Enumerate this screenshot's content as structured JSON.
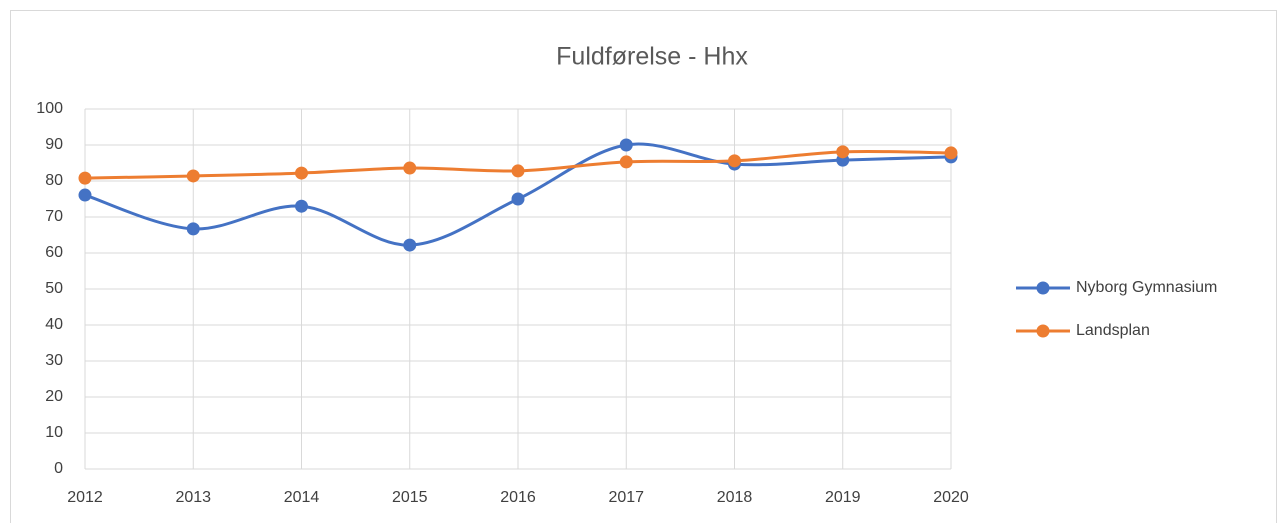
{
  "chart_data": {
    "type": "line",
    "title": "Fuldførelse - Hhx",
    "smooth": true,
    "x": [
      2012,
      2013,
      2014,
      2015,
      2016,
      2017,
      2018,
      2019,
      2020
    ],
    "series": [
      {
        "name": "Nyborg Gymnasium",
        "color": "#4472c4",
        "values": [
          76.1,
          66.7,
          73,
          62.2,
          75,
          90,
          84.7,
          85.8,
          86.7
        ]
      },
      {
        "name": "Landsplan",
        "color": "#ed7d31",
        "values": [
          80.8,
          81.4,
          82.2,
          83.6,
          82.8,
          85.3,
          85.6,
          88.1,
          87.8
        ]
      }
    ],
    "xlim": [
      2012,
      2020
    ],
    "xticks": [
      2012,
      2013,
      2014,
      2015,
      2016,
      2017,
      2018,
      2019,
      2020
    ],
    "ylim": [
      0,
      100
    ],
    "yticks": [
      0,
      10,
      20,
      30,
      40,
      50,
      60,
      70,
      80,
      90,
      100
    ],
    "grid": true,
    "legend": "right"
  }
}
